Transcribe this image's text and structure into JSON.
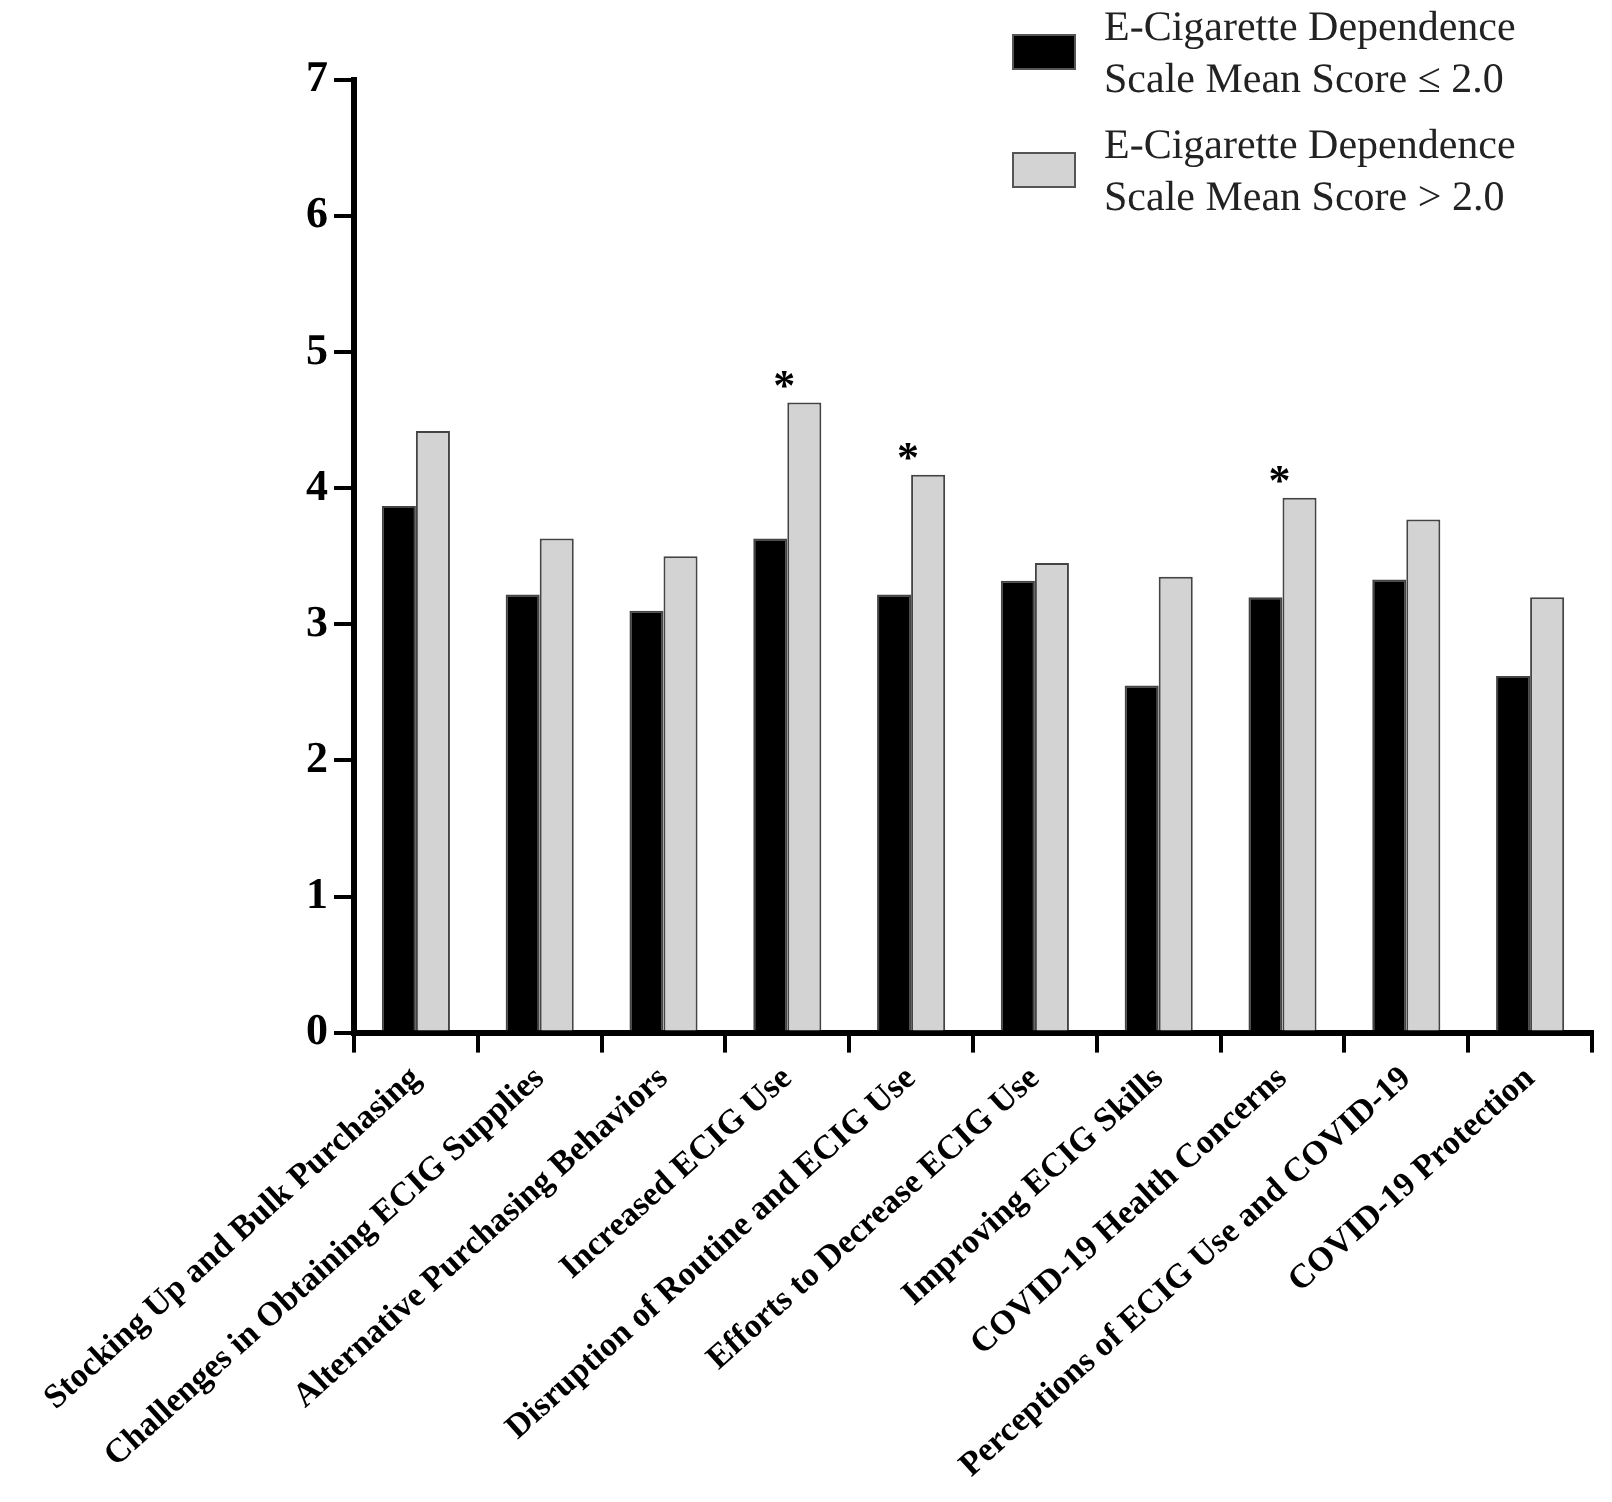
{
  "chart_data": {
    "type": "bar",
    "categories": [
      "Stocking Up and Bulk Purchasing",
      "Challenges in Obtaining ECIG Supplies",
      "Alternative Purchasing Behaviors",
      "Increased ECIG Use",
      "Disruption of Routine and ECIG Use",
      "Efforts to Decrease ECIG Use",
      "Improving ECIG Skills",
      "COVID-19 Health Concerns",
      "Perceptions of ECIG Use and COVID-19",
      "COVID-19 Protection"
    ],
    "series": [
      {
        "name": "E-Cigarette Dependence Scale Mean Score ≤ 2.0",
        "color": "#000000",
        "values": [
          3.87,
          3.22,
          3.1,
          3.63,
          3.22,
          3.32,
          2.55,
          3.2,
          3.33,
          2.62
        ]
      },
      {
        "name": "E-Cigarette Dependence Scale Mean Score > 2.0",
        "color": "#d3d3d3",
        "values": [
          4.42,
          3.63,
          3.5,
          4.63,
          4.1,
          3.45,
          3.35,
          3.93,
          3.77,
          3.2
        ]
      }
    ],
    "annotations": [
      {
        "text": "*",
        "x": "Increased ECIG Use",
        "y": 4.63
      },
      {
        "text": "*",
        "x": "Disruption of Routine and ECIG Use",
        "y": 4.1
      },
      {
        "text": "*",
        "x": "COVID-19 Health Concerns",
        "y": 3.93
      }
    ],
    "ylim": [
      0,
      7
    ],
    "yticks": [
      0,
      1,
      2,
      3,
      4,
      5,
      6,
      7
    ],
    "grid": false,
    "legend": "top right"
  }
}
